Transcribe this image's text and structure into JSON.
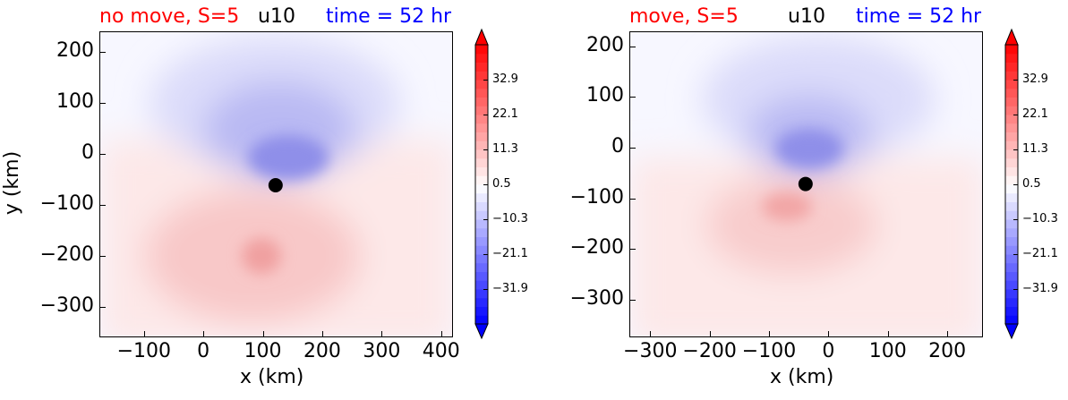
{
  "chart_data": [
    {
      "type": "heatmap",
      "panel": "left",
      "title_left": "no move, S=5",
      "title_center": "u10",
      "title_right": "time = 52 hr",
      "xlabel": "x (km)",
      "ylabel": "y (km)",
      "xlim": [
        -175,
        420
      ],
      "ylim": [
        -360,
        240
      ],
      "xticks": [
        -100,
        0,
        100,
        200,
        300,
        400
      ],
      "xtick_labels": [
        "−100",
        "0",
        "100",
        "200",
        "300",
        "400"
      ],
      "yticks": [
        200,
        100,
        0,
        -100,
        -200,
        -300
      ],
      "ytick_labels": [
        "200",
        "100",
        "0",
        "−100",
        "−200",
        "−300"
      ],
      "center_marker": {
        "x": 120,
        "y": -60
      },
      "colorbar": {
        "range": [
          -42.7,
          43.7
        ],
        "tick_values": [
          32.9,
          22.1,
          11.3,
          0.5,
          -10.3,
          -21.1,
          -31.9
        ],
        "tick_labels": [
          "32.9",
          "22.1",
          "11.3",
          "0.5",
          "−10.3",
          "−21.1",
          "−31.9"
        ]
      }
    },
    {
      "type": "heatmap",
      "panel": "right",
      "title_left": "move, S=5",
      "title_center": "u10",
      "title_right": "time = 52 hr",
      "xlabel": "x (km)",
      "ylabel": "",
      "xlim": [
        -335,
        260
      ],
      "ylim": [
        -375,
        230
      ],
      "xticks": [
        -300,
        -200,
        -100,
        0,
        100,
        200
      ],
      "xtick_labels": [
        "−300",
        "−200",
        "−100",
        "0",
        "100",
        "200"
      ],
      "yticks": [
        200,
        100,
        0,
        -100,
        -200,
        -300
      ],
      "ytick_labels": [
        "200",
        "100",
        "0",
        "−100",
        "−200",
        "−300"
      ],
      "center_marker": {
        "x": -40,
        "y": -70
      },
      "colorbar": {
        "range": [
          -42.7,
          43.7
        ],
        "tick_values": [
          32.9,
          22.1,
          11.3,
          0.5,
          -10.3,
          -21.1,
          -31.9
        ],
        "tick_labels": [
          "32.9",
          "22.1",
          "11.3",
          "0.5",
          "−10.3",
          "−21.1",
          "−31.9"
        ]
      }
    }
  ],
  "colors": {
    "title_left": "#ff0000",
    "title_center": "#000000",
    "title_right": "#0000ff",
    "positive": "#ff0000",
    "negative": "#0000ff",
    "marker": "#000000"
  }
}
